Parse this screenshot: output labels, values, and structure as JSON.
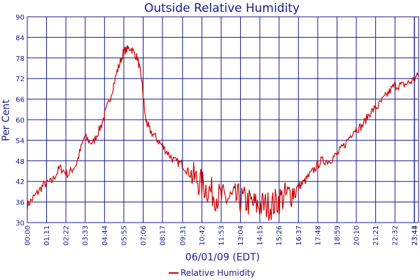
{
  "chart_data": {
    "type": "line",
    "title": "Outside Relative Humidity",
    "xlabel": "06/01/09 (EDT)",
    "ylabel": "Per Cent",
    "ylim": [
      30,
      90
    ],
    "yticks": [
      30,
      36,
      42,
      48,
      54,
      60,
      66,
      72,
      78,
      84,
      90
    ],
    "xlim": [
      "00:00",
      "23:59"
    ],
    "xticks": [
      "00:00",
      "01:11",
      "02:22",
      "03:33",
      "04:44",
      "05:55",
      "07:06",
      "08:17",
      "09:31",
      "10:42",
      "11:53",
      "13:04",
      "14:15",
      "15:26",
      "16:37",
      "17:48",
      "18:59",
      "20:10",
      "21:21",
      "22:32",
      "23:43",
      "23:44"
    ],
    "grid": true,
    "legend_position": "bottom",
    "colors": {
      "series": "#cc0000",
      "grid": "#1a1a8c",
      "text": "#1a1a8c"
    },
    "series": [
      {
        "name": "Relative Humidity",
        "x": [
          "00:00",
          "00:30",
          "01:00",
          "01:30",
          "02:00",
          "02:30",
          "03:00",
          "03:30",
          "04:00",
          "04:30",
          "05:00",
          "05:30",
          "05:55",
          "06:20",
          "06:45",
          "07:00",
          "07:15",
          "07:30",
          "08:00",
          "08:30",
          "09:00",
          "09:30",
          "10:00",
          "10:30",
          "11:00",
          "11:30",
          "12:00",
          "12:30",
          "13:00",
          "13:30",
          "14:00",
          "14:30",
          "15:00",
          "15:30",
          "16:00",
          "16:30",
          "17:00",
          "17:30",
          "18:00",
          "18:30",
          "19:00",
          "19:30",
          "20:00",
          "20:30",
          "21:00",
          "21:30",
          "22:00",
          "22:30",
          "23:00",
          "23:30",
          "23:59"
        ],
        "y": [
          35,
          38,
          41,
          42,
          46,
          44,
          47,
          55,
          53,
          58,
          65,
          74,
          80,
          81,
          78,
          72,
          60,
          57,
          54,
          51,
          48,
          47,
          44,
          42,
          40,
          38,
          37,
          37,
          37,
          36,
          35,
          35,
          35,
          37,
          38,
          40,
          42,
          45,
          48,
          48,
          50,
          53,
          57,
          58,
          62,
          64,
          67,
          70,
          70,
          71,
          73
        ]
      }
    ]
  }
}
